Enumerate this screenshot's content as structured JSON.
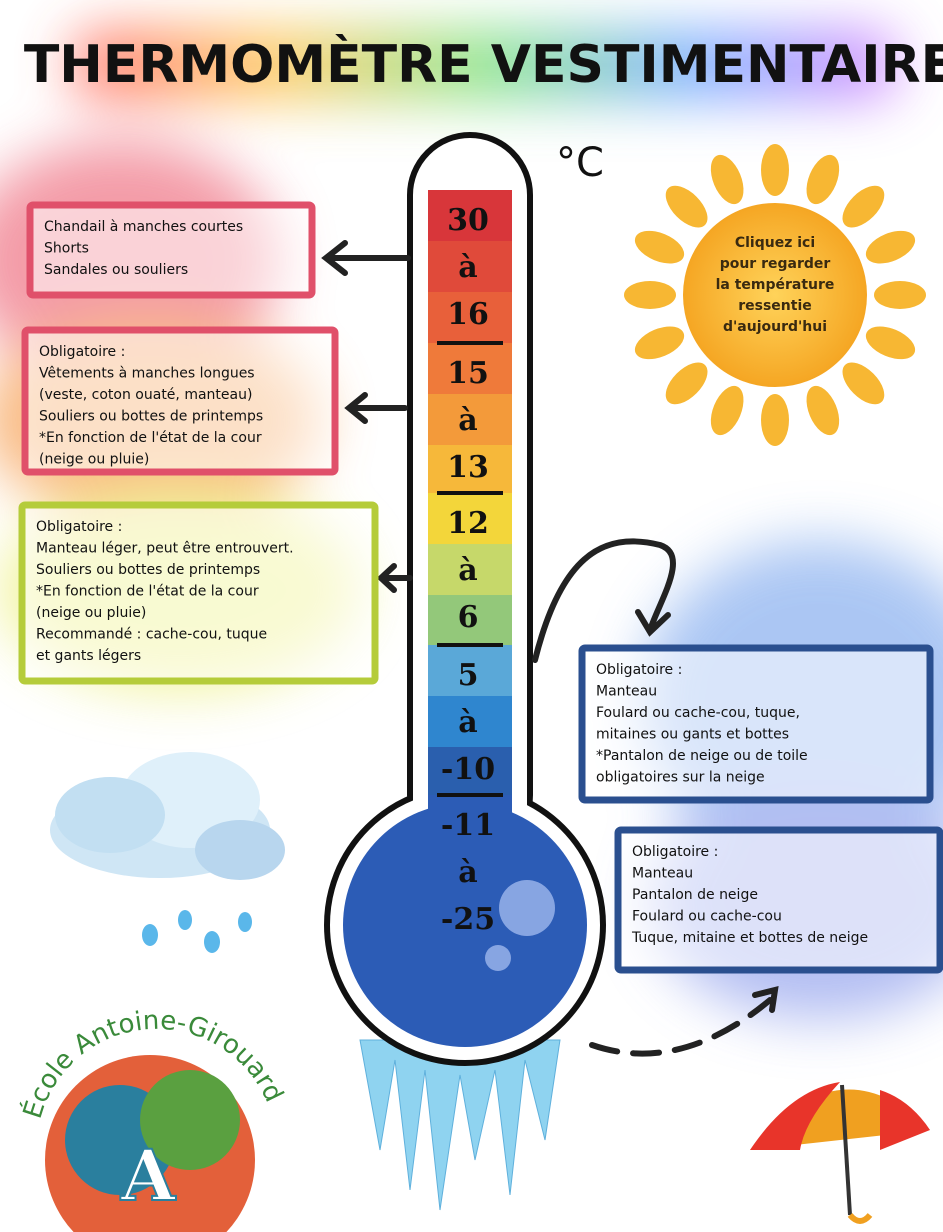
{
  "title": "THERMOMÈTRE VESTIMENTAIRE",
  "unit": "°C",
  "scale": [
    [
      "30",
      "à",
      "16"
    ],
    [
      "15",
      "à",
      "13"
    ],
    [
      "12",
      "à",
      "6"
    ],
    [
      "5",
      "à",
      "-10"
    ],
    [
      "-11",
      "à",
      "-25"
    ]
  ],
  "boxes": [
    {
      "lines": [
        "Chandail à manches courtes",
        "Shorts",
        "Sandales ou souliers"
      ]
    },
    {
      "lines": [
        "Obligatoire :",
        "Vêtements à manches longues",
        "(veste, coton ouaté, manteau)",
        "Souliers ou bottes de printemps",
        "*En fonction de l'état de la cour",
        "(neige ou pluie)"
      ]
    },
    {
      "lines": [
        "Obligatoire :",
        "Manteau léger, peut être entrouvert.",
        "Souliers ou bottes de printemps",
        "*En fonction de l'état de la cour",
        "(neige ou pluie)",
        "Recommandé : cache-cou, tuque",
        "et gants légers"
      ]
    },
    {
      "lines": [
        "Obligatoire :",
        "Manteau",
        "Foulard ou cache-cou, tuque,",
        "mitaines ou gants et bottes",
        "*Pantalon de neige ou de toile",
        "obligatoires sur la neige"
      ]
    },
    {
      "lines": [
        "Obligatoire :",
        "Manteau",
        "Pantalon de neige",
        "Foulard ou cache-cou",
        "Tuque, mitaine et bottes de neige"
      ]
    }
  ],
  "sun": {
    "lines": [
      "Cliquez ici",
      "pour regarder",
      "la température",
      "ressentie",
      "d'aujourd'hui"
    ]
  },
  "logo": {
    "name": "École Antoine-Girouard"
  }
}
